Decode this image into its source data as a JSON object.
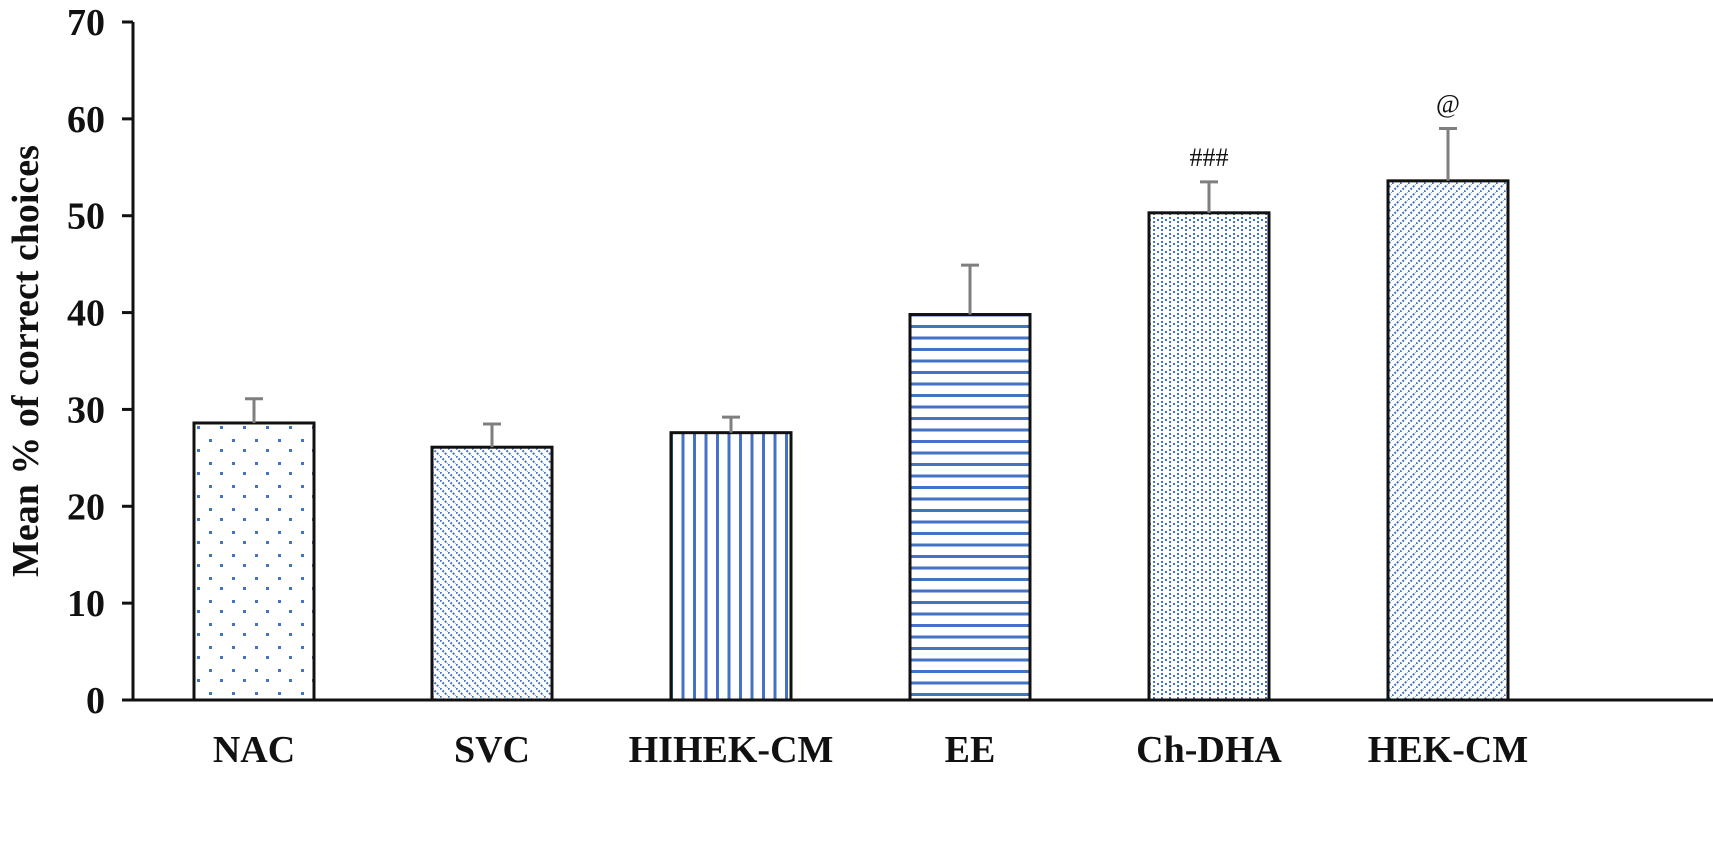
{
  "chart_data": {
    "type": "bar",
    "title": "",
    "xlabel": "",
    "ylabel": "Mean % of correct choices",
    "ylim": [
      0,
      70
    ],
    "yticks": [
      0,
      10,
      20,
      30,
      40,
      50,
      60,
      70
    ],
    "grid": false,
    "categories": [
      "NAC",
      "SVC",
      "HIHEK-CM",
      "EE",
      "Ch-DHA",
      "HEK-CM"
    ],
    "values": [
      28.6,
      26.1,
      27.6,
      39.8,
      50.3,
      53.6
    ],
    "error_upper": [
      2.5,
      2.4,
      1.6,
      5.1,
      3.2,
      5.4
    ],
    "patterns": [
      "dots",
      "diagonal-dense-down",
      "vertical-lines",
      "horizontal-lines",
      "dotted-grid",
      "diagonal-dense-up"
    ],
    "annotations": [
      "",
      "",
      "",
      "",
      "###",
      "@"
    ],
    "colors": {
      "pattern": "#4472c4",
      "bar_outline": "#111111",
      "error_bar": "#7f7f7f",
      "axis": "#111111"
    }
  }
}
